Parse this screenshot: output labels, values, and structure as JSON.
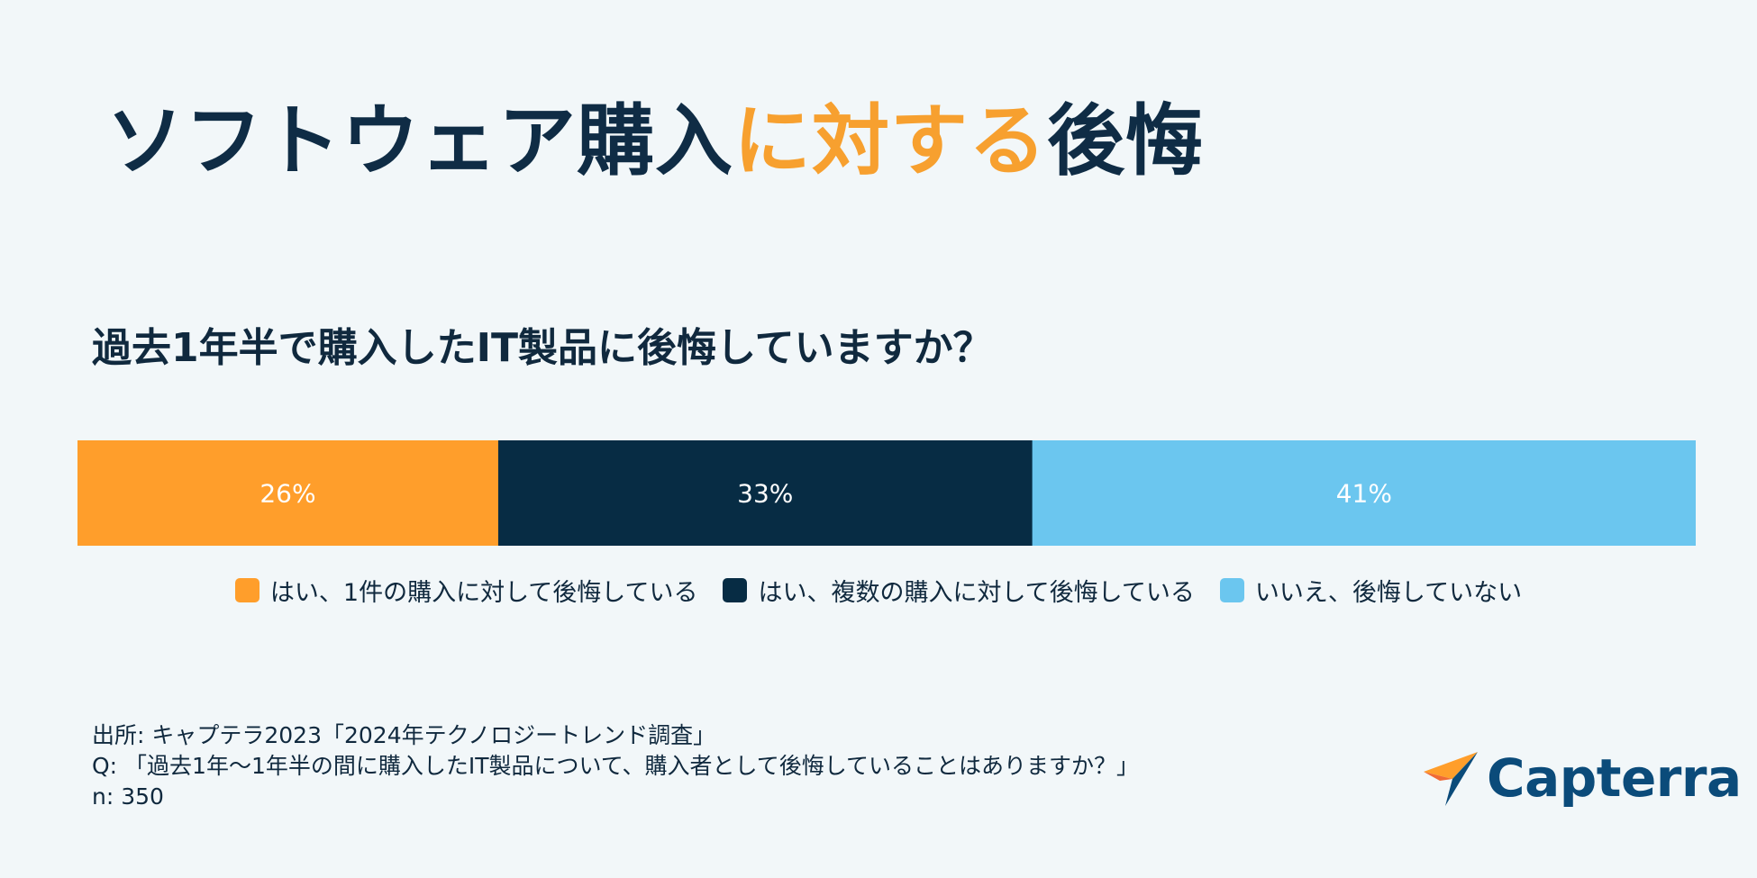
{
  "title": {
    "part1": "ソフトウェア購入",
    "part2": "に対する",
    "part3": "後悔"
  },
  "question": "過去1年半で購入したIT製品に後悔していますか？",
  "chart_data": {
    "type": "bar",
    "stacked": true,
    "orientation": "horizontal",
    "unit": "%",
    "series": [
      {
        "name": "はい、1件の購入に対して後悔している",
        "value": 26,
        "label": "26%",
        "color": "#ff9e2b",
        "text_color": "#ffffff"
      },
      {
        "name": "はい、複数の購入に対して後悔している",
        "value": 33,
        "label": "33%",
        "color": "#072c44",
        "text_color": "#ffffff"
      },
      {
        "name": "いいえ、後悔していない",
        "value": 41,
        "label": "41%",
        "color": "#6bc6ef",
        "text_color": "#ffffff"
      }
    ],
    "total": 100,
    "legend_position": "bottom"
  },
  "footer": {
    "source": "出所: キャプテラ2023「2024年テクノロジートレンド調査」",
    "q": "Q: 「過去1年〜1年半の間に購入したIT製品について、購入者として後悔していることはありますか？」",
    "n": "n: 350"
  },
  "logo": {
    "name": "Capterra",
    "icon": "capterra-arrow-icon"
  }
}
